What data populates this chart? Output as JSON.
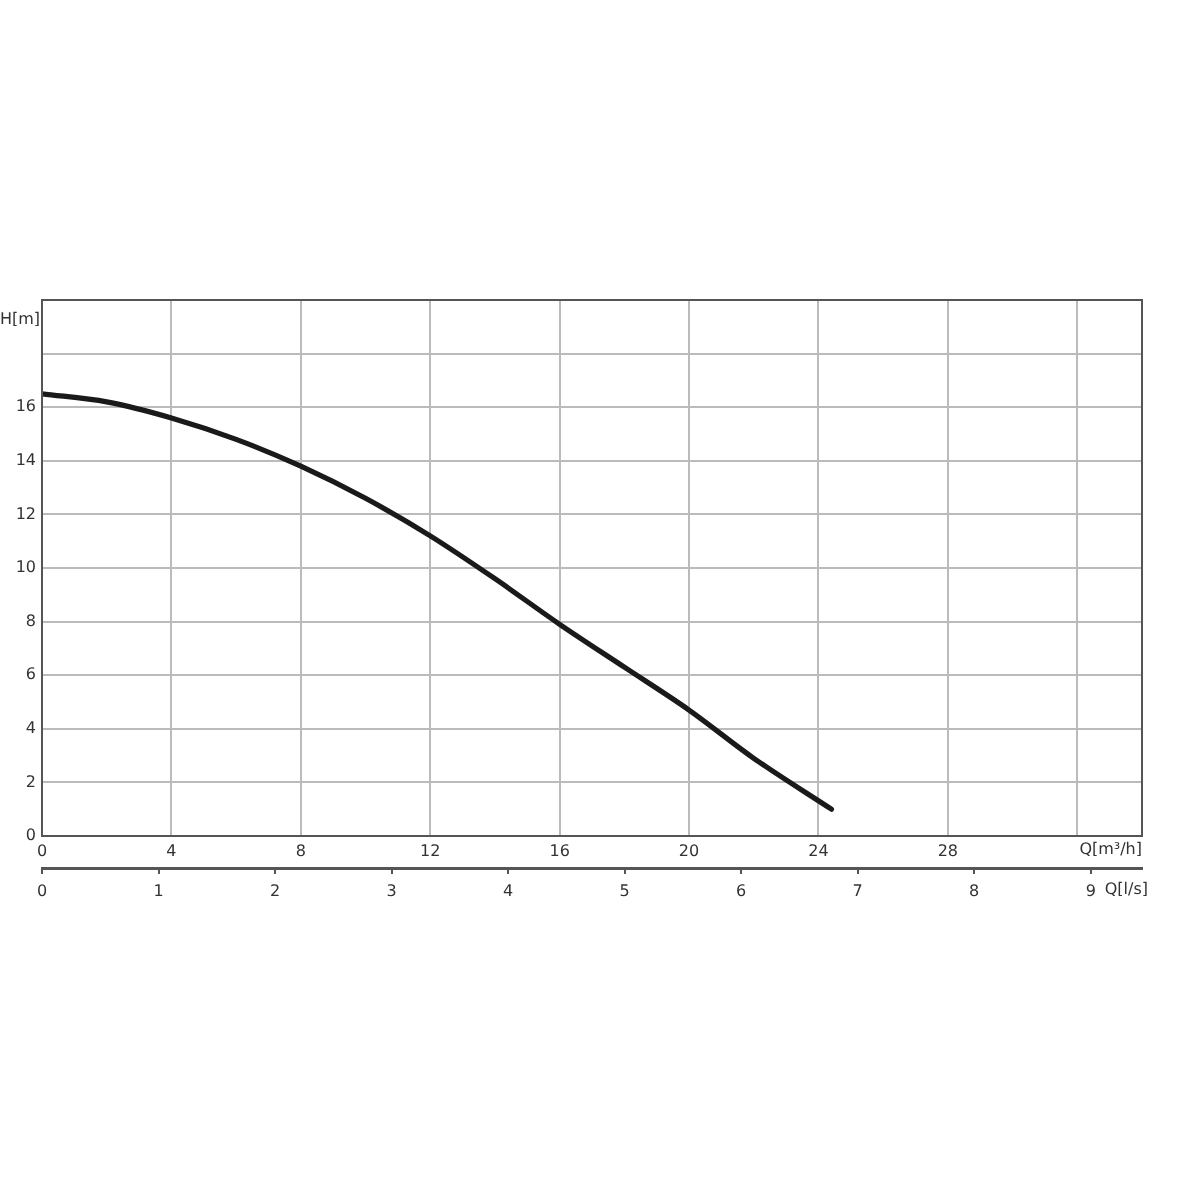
{
  "chart_data": {
    "type": "line",
    "xlabel": "Q[m³/h]",
    "x2label": "Q[l/s]",
    "ylabel": "H[m]",
    "series": [
      {
        "color": "#1a1a1a",
        "x": [
          0,
          2,
          4,
          6,
          8,
          10,
          12,
          14,
          16,
          18,
          20,
          22,
          24.4
        ],
        "values": [
          16.5,
          16.2,
          15.6,
          14.8,
          13.8,
          12.6,
          11.2,
          9.6,
          7.9,
          6.3,
          4.7,
          2.9,
          1.0
        ]
      }
    ],
    "xlim": [
      0,
      34
    ],
    "xticks": [
      0,
      4,
      8,
      12,
      16,
      20,
      24,
      28,
      {
        "value": 32,
        "label": null
      }
    ],
    "x2lim": [
      0,
      9.44
    ],
    "x2ticks": [
      0,
      1,
      2,
      3,
      4,
      5,
      6,
      7,
      8,
      9
    ],
    "ylim": [
      0,
      20
    ],
    "yticks": [
      0,
      2,
      4,
      6,
      8,
      10,
      12,
      14,
      16,
      {
        "value": 18,
        "label": null
      }
    ],
    "grid": true,
    "legend": false,
    "marker": "none",
    "line_style": "solid"
  }
}
